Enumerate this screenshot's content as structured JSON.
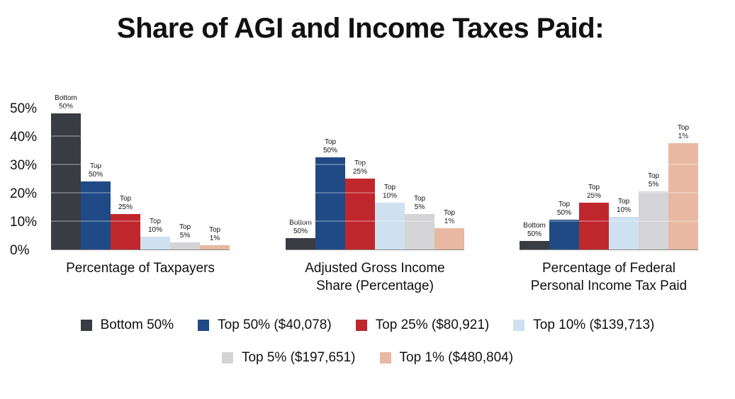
{
  "title": "Share of AGI and Income Taxes Paid:",
  "colors": {
    "bottom50": "#3a3c44",
    "top50": "#1f4a86",
    "top25": "#c0272d",
    "top10": "#cfe1f0",
    "top5": "#d4d4d6",
    "top1": "#e8b8a2",
    "axis": "#888888",
    "grid": "#ffffff"
  },
  "legend": {
    "row1": [
      {
        "label": "Bottom 50%",
        "color": "#3a3c44"
      },
      {
        "label": "Top 50% ($40,078)",
        "color": "#1f4a86"
      },
      {
        "label": "Top 25% ($80,921)",
        "color": "#c0272d"
      },
      {
        "label": "Top 10% ($139,713)",
        "color": "#cfe1f0"
      }
    ],
    "row2": [
      {
        "label": "Top 5% ($197,651)",
        "color": "#d4d4d6"
      },
      {
        "label": "Top 1% ($480,804)",
        "color": "#e8b8a2"
      }
    ]
  },
  "chart_data": {
    "type": "bar",
    "title": "Share of AGI and Income Taxes Paid:",
    "ylim": [
      0,
      50
    ],
    "yticks": [
      "0%",
      "10%",
      "20%",
      "30%",
      "40%",
      "50%"
    ],
    "grid": true,
    "legend_position": "bottom",
    "series_labels": [
      [
        "Bottom",
        "50%"
      ],
      [
        "Top",
        "50%"
      ],
      [
        "Top",
        "25%"
      ],
      [
        "Top",
        "10%"
      ],
      [
        "Top",
        "5%"
      ],
      [
        "Top",
        "1%"
      ]
    ],
    "groups": [
      {
        "category": [
          "Percentage of Taxpayers"
        ],
        "values": [
          48,
          24,
          12.5,
          4.5,
          2.5,
          1.5
        ]
      },
      {
        "category": [
          "Adjusted Gross Income",
          "Share (Percentage)"
        ],
        "values": [
          4,
          32.5,
          25,
          16.5,
          12.5,
          7.5
        ]
      },
      {
        "category": [
          "Percentage of Federal",
          "Personal Income Tax Paid"
        ],
        "values": [
          3,
          10.5,
          16.5,
          11.5,
          20.5,
          37.5
        ]
      }
    ]
  }
}
